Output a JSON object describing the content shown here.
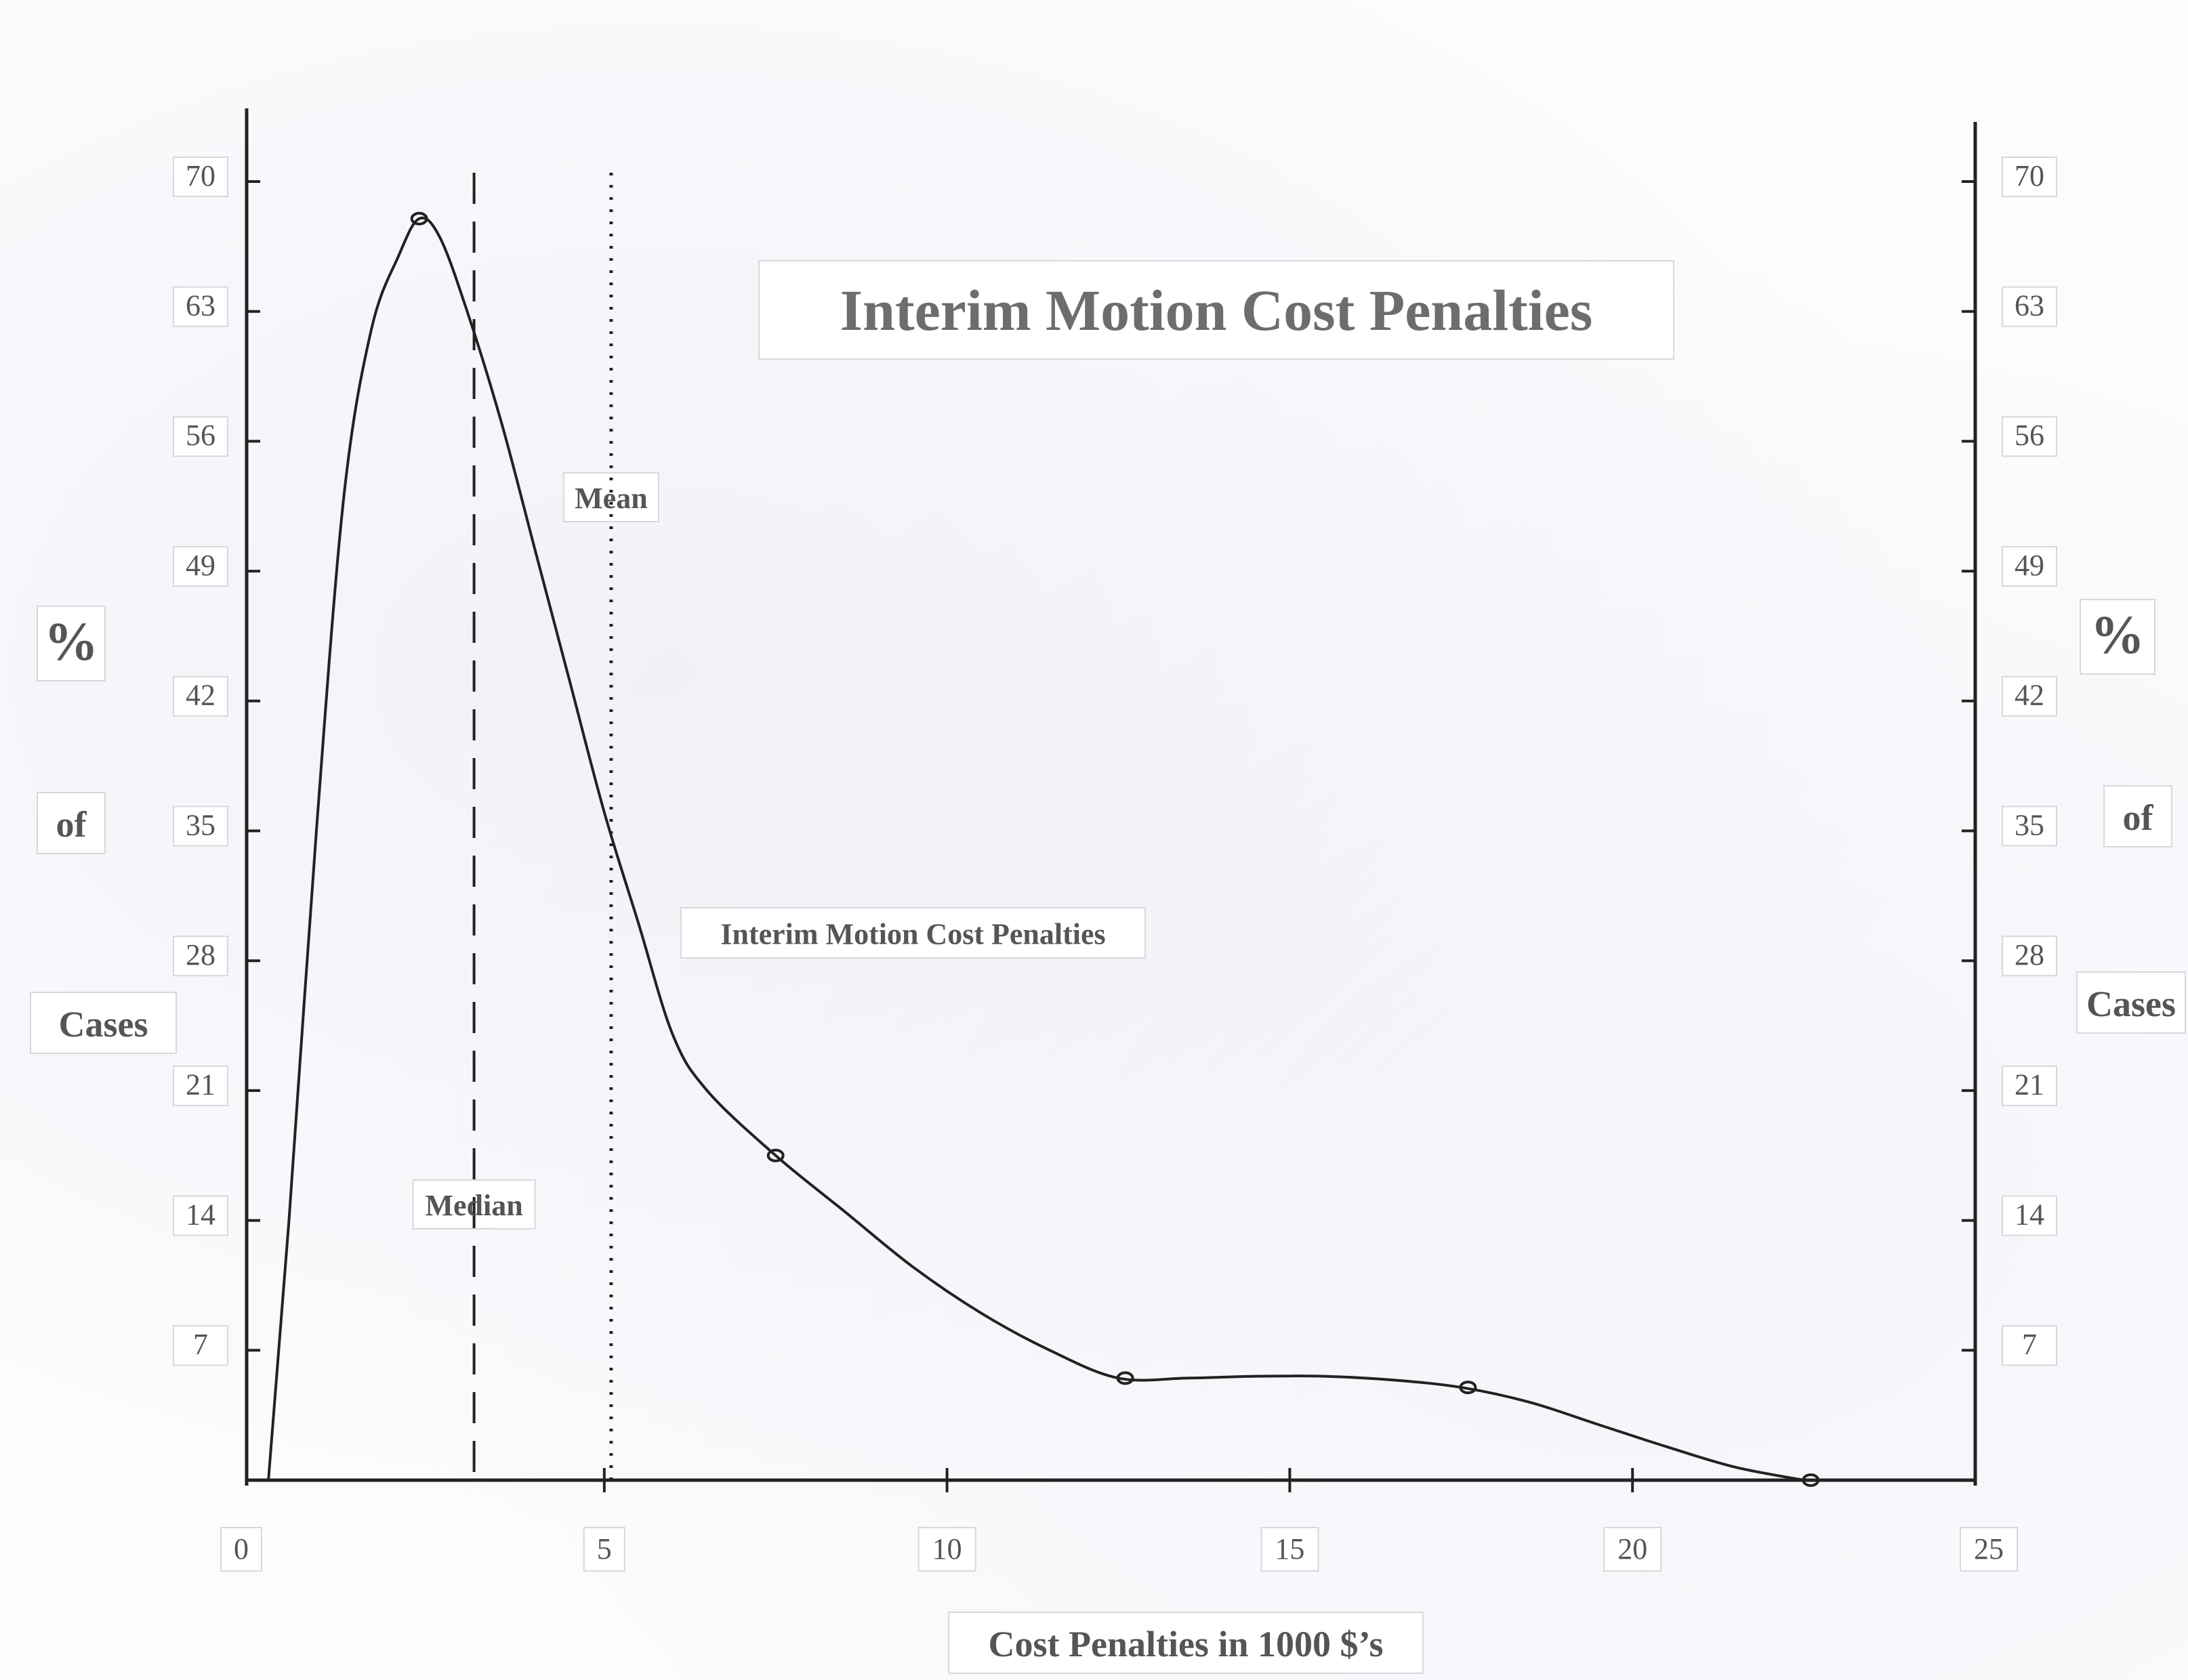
{
  "chart_data": {
    "type": "line",
    "title": "Interim Motion Cost Penalties",
    "xlabel": "Cost  Penalties in 1000 $’s",
    "ylabel_lines": [
      "%",
      "of",
      "Cases"
    ],
    "xlim": [
      0,
      25
    ],
    "ylim": [
      0,
      70
    ],
    "x_ticks": [
      "0",
      "5",
      "10",
      "15",
      "20",
      "25"
    ],
    "y_ticks": [
      "7",
      "14",
      "21",
      "28",
      "35",
      "42",
      "49",
      "56",
      "63",
      "70"
    ],
    "right_axis": true,
    "grid": false,
    "series": [
      {
        "name": "Interim Motion Cost Penalties",
        "x": [
          0.1,
          0.4,
          0.8,
          1.2,
          1.6,
          2.0,
          2.3,
          2.6,
          3.0,
          3.5,
          4.0,
          4.5,
          5.0,
          5.5,
          6.0,
          6.5,
          7.5,
          8.5,
          9.5,
          10.5,
          11.5,
          12.5,
          13.5,
          14.5,
          15.5,
          16.5,
          17.5,
          18.5,
          19.5,
          20.5,
          21.5,
          22.5
        ],
        "y": [
          0,
          14,
          35,
          53,
          62,
          66,
          68,
          67,
          63,
          57,
          50,
          43,
          36,
          30,
          24,
          21,
          17.5,
          14.5,
          11.5,
          9,
          7,
          5.5,
          5.5,
          5.6,
          5.6,
          5.4,
          5.0,
          4.2,
          3.0,
          1.8,
          0.7,
          0
        ]
      }
    ],
    "markers": [
      {
        "x": 2.3,
        "y": 68
      },
      {
        "x": 7.5,
        "y": 17.5
      },
      {
        "x": 12.6,
        "y": 5.5
      },
      {
        "x": 17.6,
        "y": 5.0
      },
      {
        "x": 22.6,
        "y": 0
      }
    ],
    "reference_lines": [
      {
        "label": "Median",
        "x": 3.1,
        "style": "dashed"
      },
      {
        "label": "Mean",
        "x": 5.1,
        "style": "dotted"
      }
    ]
  }
}
